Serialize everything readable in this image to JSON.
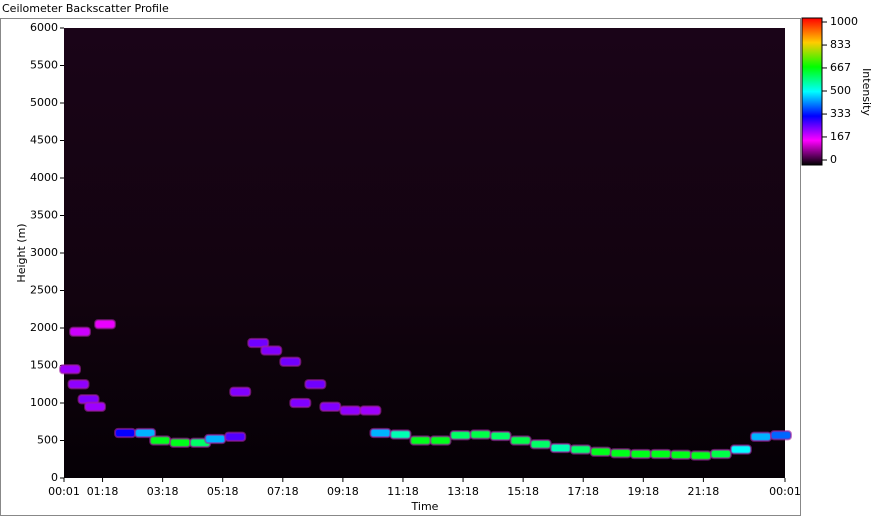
{
  "chart_data": {
    "type": "heatmap",
    "title": "Ceilometer Backscatter Profile",
    "x_label": "Time",
    "y_label": "Height (m)",
    "colorbar_label": "Intensity",
    "x": [
      13,
      30,
      50,
      63,
      33,
      83,
      123,
      163,
      193,
      233,
      273,
      303,
      343,
      353,
      389,
      415,
      453,
      473,
      503,
      533,
      573,
      613,
      633,
      673,
      713,
      753,
      793,
      833,
      873,
      913,
      953,
      993,
      1033,
      1073,
      1113,
      1153,
      1193,
      1233,
      1273,
      1313,
      1353,
      1393,
      1433
    ],
    "y": [
      1450,
      1250,
      1050,
      950,
      1950,
      2050,
      600,
      600,
      500,
      470,
      470,
      520,
      550,
      1150,
      1800,
      1700,
      1550,
      1000,
      1250,
      950,
      900,
      900,
      600,
      580,
      500,
      500,
      570,
      580,
      560,
      500,
      450,
      400,
      380,
      350,
      330,
      320,
      320,
      310,
      300,
      320,
      380,
      550,
      570
    ],
    "values": [
      230,
      240,
      250,
      230,
      200,
      180,
      330,
      450,
      650,
      650,
      600,
      450,
      280,
      250,
      260,
      250,
      260,
      250,
      260,
      250,
      240,
      230,
      450,
      550,
      650,
      650,
      600,
      620,
      600,
      620,
      600,
      550,
      600,
      650,
      650,
      650,
      650,
      650,
      650,
      620,
      500,
      450,
      400
    ],
    "xlim": [
      1,
      1441
    ],
    "xticks": [
      {
        "value": 1,
        "label": "00:01"
      },
      {
        "value": 78,
        "label": "01:18"
      },
      {
        "value": 198,
        "label": "03:18"
      },
      {
        "value": 318,
        "label": "05:18"
      },
      {
        "value": 438,
        "label": "07:18"
      },
      {
        "value": 558,
        "label": "09:18"
      },
      {
        "value": 678,
        "label": "11:18"
      },
      {
        "value": 798,
        "label": "13:18"
      },
      {
        "value": 918,
        "label": "15:18"
      },
      {
        "value": 1038,
        "label": "17:18"
      },
      {
        "value": 1158,
        "label": "19:18"
      },
      {
        "value": 1278,
        "label": "21:18"
      },
      {
        "value": 1441,
        "label": "00:01"
      }
    ],
    "ylim": [
      0,
      6000
    ],
    "yticks": [
      0,
      500,
      1000,
      1500,
      2000,
      2500,
      3000,
      3500,
      4000,
      4500,
      5000,
      5500,
      6000
    ],
    "zlim": [
      0,
      1000
    ],
    "zticks": [
      0,
      167,
      333,
      500,
      667,
      833,
      1000
    ],
    "colorscale": [
      "#000000",
      "#ff00ff",
      "#0000ff",
      "#00ffff",
      "#00ff00",
      "#ffcc00",
      "#ff0000"
    ],
    "grid": false
  }
}
